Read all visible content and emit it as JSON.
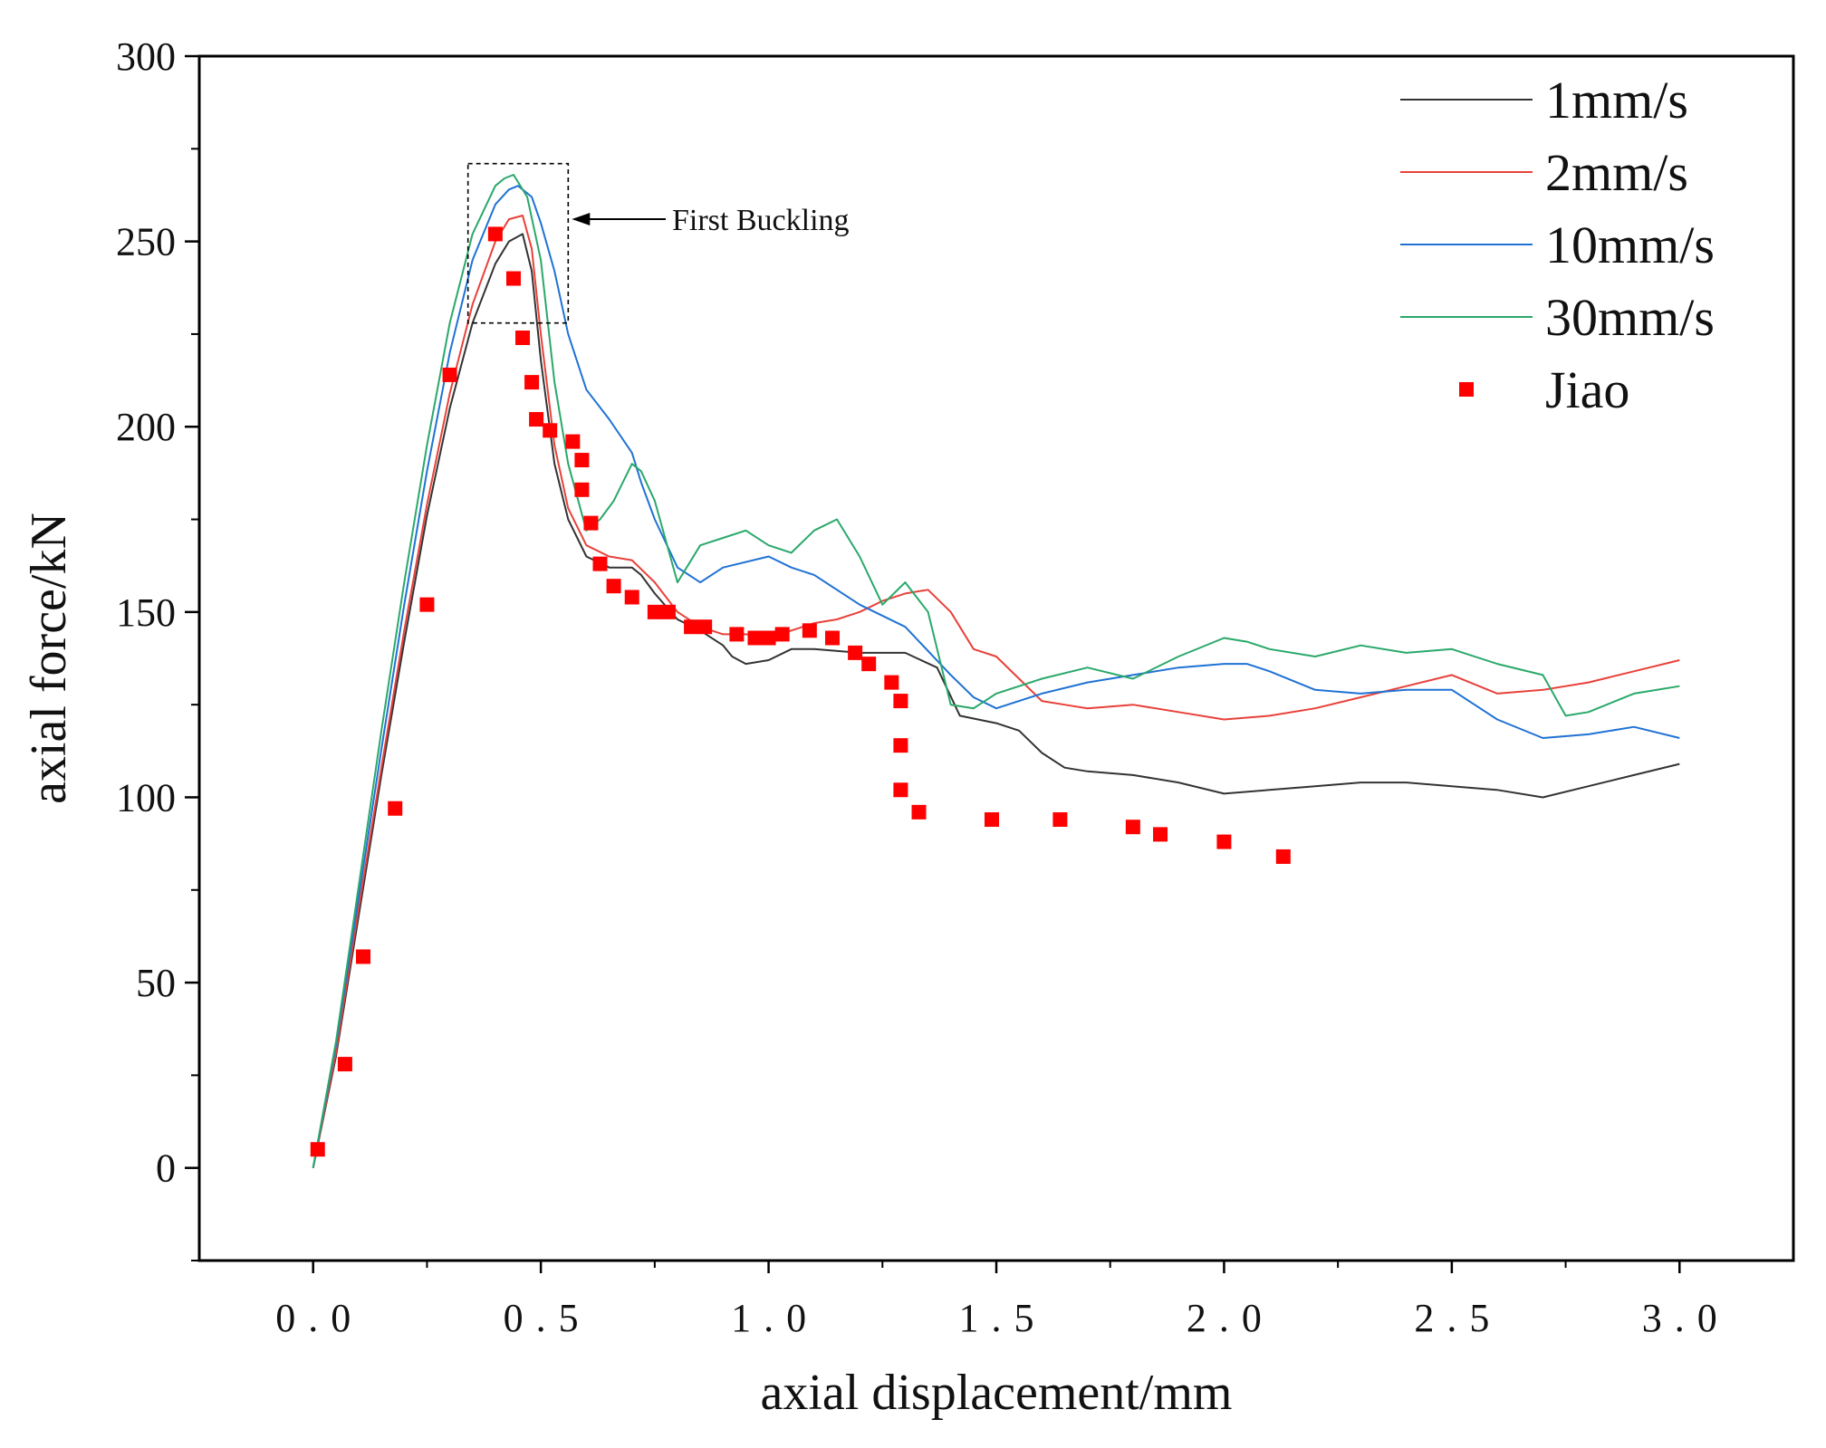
{
  "chart_data": {
    "type": "line",
    "title": "",
    "xlabel": "axial displacement/mm",
    "ylabel": "axial force/kN",
    "xlim": [
      -0.25,
      3.25
    ],
    "ylim": [
      -25,
      300
    ],
    "x_ticks": [
      0.0,
      0.5,
      1.0,
      1.5,
      2.0,
      2.5,
      3.0
    ],
    "x_tick_labels": [
      "0.0",
      "0.5",
      "1.0",
      "1.5",
      "2.0",
      "2.5",
      "3.0"
    ],
    "y_ticks": [
      0,
      50,
      100,
      150,
      200,
      250,
      300
    ],
    "y_tick_labels": [
      "0",
      "50",
      "100",
      "150",
      "200",
      "250",
      "300"
    ],
    "grid": false,
    "legend_position": "top-right",
    "series": [
      {
        "name": "1mm/s",
        "color": "#333333",
        "marker": "line",
        "x": [
          0.0,
          0.05,
          0.1,
          0.15,
          0.2,
          0.25,
          0.3,
          0.35,
          0.4,
          0.43,
          0.46,
          0.48,
          0.5,
          0.53,
          0.56,
          0.6,
          0.65,
          0.7,
          0.72,
          0.75,
          0.8,
          0.85,
          0.9,
          0.92,
          0.95,
          1.0,
          1.05,
          1.1,
          1.2,
          1.3,
          1.37,
          1.42,
          1.5,
          1.55,
          1.6,
          1.65,
          1.7,
          1.8,
          1.9,
          2.0,
          2.1,
          2.2,
          2.3,
          2.4,
          2.5,
          2.6,
          2.7,
          2.8,
          2.9,
          3.0
        ],
        "y": [
          0,
          30,
          68,
          106,
          142,
          176,
          205,
          228,
          244,
          250,
          252,
          242,
          218,
          190,
          175,
          165,
          162,
          162,
          160,
          155,
          148,
          145,
          141,
          138,
          136,
          137,
          140,
          140,
          139,
          139,
          135,
          122,
          120,
          118,
          112,
          108,
          107,
          106,
          104,
          101,
          102,
          103,
          104,
          104,
          103,
          102,
          100,
          103,
          106,
          109
        ]
      },
      {
        "name": "2mm/s",
        "color": "#e8413a",
        "marker": "line",
        "x": [
          0.0,
          0.05,
          0.1,
          0.15,
          0.2,
          0.25,
          0.3,
          0.35,
          0.4,
          0.43,
          0.46,
          0.48,
          0.5,
          0.53,
          0.56,
          0.6,
          0.65,
          0.7,
          0.75,
          0.8,
          0.85,
          0.9,
          0.95,
          1.0,
          1.05,
          1.1,
          1.15,
          1.2,
          1.25,
          1.3,
          1.35,
          1.4,
          1.45,
          1.5,
          1.55,
          1.6,
          1.65,
          1.7,
          1.8,
          1.9,
          2.0,
          2.1,
          2.2,
          2.3,
          2.4,
          2.5,
          2.6,
          2.7,
          2.8,
          2.9,
          3.0
        ],
        "y": [
          0,
          31,
          70,
          108,
          145,
          179,
          209,
          233,
          250,
          256,
          257,
          248,
          225,
          195,
          178,
          168,
          165,
          164,
          158,
          150,
          146,
          144,
          144,
          143,
          145,
          147,
          148,
          150,
          153,
          155,
          156,
          150,
          140,
          138,
          132,
          126,
          125,
          124,
          125,
          123,
          121,
          122,
          124,
          127,
          130,
          133,
          128,
          129,
          131,
          134,
          137
        ]
      },
      {
        "name": "10mm/s",
        "color": "#1f72d4",
        "marker": "line",
        "x": [
          0.0,
          0.05,
          0.1,
          0.15,
          0.2,
          0.25,
          0.3,
          0.35,
          0.4,
          0.43,
          0.45,
          0.48,
          0.5,
          0.53,
          0.56,
          0.6,
          0.65,
          0.7,
          0.72,
          0.75,
          0.8,
          0.85,
          0.9,
          1.0,
          1.05,
          1.1,
          1.2,
          1.3,
          1.4,
          1.45,
          1.5,
          1.6,
          1.7,
          1.8,
          1.9,
          2.0,
          2.05,
          2.1,
          2.2,
          2.3,
          2.4,
          2.5,
          2.6,
          2.7,
          2.8,
          2.9,
          3.0
        ],
        "y": [
          0,
          33,
          73,
          113,
          152,
          188,
          220,
          245,
          260,
          264,
          265,
          262,
          255,
          242,
          225,
          210,
          202,
          193,
          185,
          175,
          162,
          158,
          162,
          165,
          162,
          160,
          152,
          146,
          133,
          127,
          124,
          128,
          131,
          133,
          135,
          136,
          136,
          134,
          129,
          128,
          129,
          129,
          121,
          116,
          117,
          119,
          116
        ]
      },
      {
        "name": "30mm/s",
        "color": "#2aa86a",
        "marker": "line",
        "x": [
          0.0,
          0.05,
          0.1,
          0.15,
          0.2,
          0.25,
          0.3,
          0.35,
          0.4,
          0.42,
          0.44,
          0.47,
          0.5,
          0.53,
          0.56,
          0.6,
          0.63,
          0.66,
          0.7,
          0.72,
          0.75,
          0.8,
          0.85,
          0.9,
          0.95,
          1.0,
          1.05,
          1.1,
          1.15,
          1.2,
          1.25,
          1.3,
          1.35,
          1.4,
          1.45,
          1.5,
          1.6,
          1.7,
          1.8,
          1.9,
          2.0,
          2.05,
          2.1,
          2.2,
          2.3,
          2.4,
          2.5,
          2.6,
          2.7,
          2.75,
          2.8,
          2.9,
          3.0
        ],
        "y": [
          0,
          34,
          76,
          118,
          158,
          195,
          228,
          252,
          265,
          267,
          268,
          262,
          245,
          212,
          190,
          172,
          175,
          180,
          190,
          188,
          180,
          158,
          168,
          170,
          172,
          168,
          166,
          172,
          175,
          165,
          152,
          158,
          150,
          125,
          124,
          128,
          132,
          135,
          132,
          138,
          143,
          142,
          140,
          138,
          141,
          139,
          140,
          136,
          133,
          122,
          123,
          128,
          130
        ]
      },
      {
        "name": "Jiao",
        "color": "#ff0000",
        "marker": "square",
        "x": [
          0.01,
          0.07,
          0.11,
          0.18,
          0.25,
          0.3,
          0.4,
          0.44,
          0.46,
          0.48,
          0.49,
          0.52,
          0.57,
          0.59,
          0.59,
          0.61,
          0.63,
          0.66,
          0.7,
          0.75,
          0.78,
          0.83,
          0.86,
          0.93,
          0.97,
          1.0,
          1.03,
          1.09,
          1.14,
          1.19,
          1.22,
          1.27,
          1.29,
          1.29,
          1.29,
          1.33,
          1.49,
          1.64,
          1.8,
          1.86,
          2.0,
          2.13
        ],
        "y": [
          5,
          28,
          57,
          97,
          152,
          214,
          252,
          240,
          224,
          212,
          202,
          199,
          196,
          191,
          183,
          174,
          163,
          157,
          154,
          150,
          150,
          146,
          146,
          144,
          143,
          143,
          144,
          145,
          143,
          139,
          136,
          131,
          126,
          114,
          102,
          96,
          94,
          94,
          92,
          90,
          88,
          84
        ]
      }
    ],
    "annotations": [
      {
        "text": "First Buckling",
        "box_x": [
          0.34,
          0.56
        ],
        "box_y": [
          228,
          271
        ]
      }
    ]
  }
}
